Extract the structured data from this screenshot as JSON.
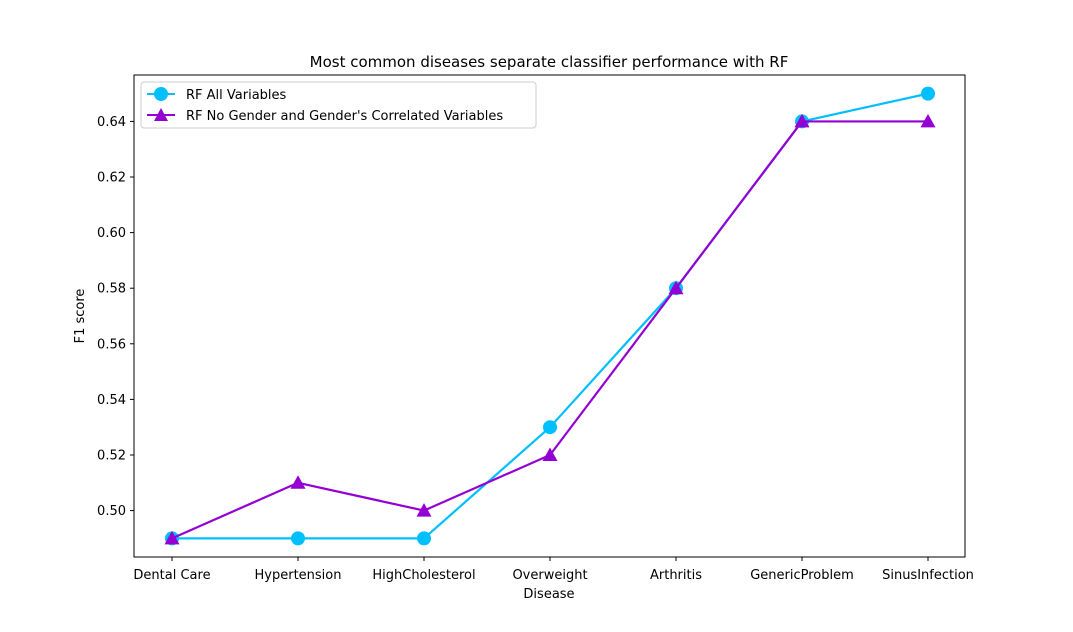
{
  "chart_data": {
    "type": "line",
    "title": "Most common diseases separate classifier performance with RF",
    "xlabel": "Disease",
    "ylabel": "F1 score",
    "categories": [
      "Dental Care",
      "Hypertension",
      "HighCholesterol",
      "Overweight",
      "Arthritis",
      "GenericProblem",
      "SinusInfection"
    ],
    "y_ticks": [
      "0.50",
      "0.52",
      "0.54",
      "0.56",
      "0.58",
      "0.60",
      "0.62",
      "0.64"
    ],
    "ylim": [
      0.4833,
      0.6567
    ],
    "grid": false,
    "legend_position": "top-left",
    "series": [
      {
        "name": "RF All Variables",
        "values": [
          0.49,
          0.49,
          0.49,
          0.53,
          0.58,
          0.64,
          0.65
        ],
        "color": "#00bfff",
        "marker": "circle"
      },
      {
        "name": "RF No Gender and Gender's Correlated Variables",
        "values": [
          0.49,
          0.51,
          0.5,
          0.52,
          0.58,
          0.64,
          0.64
        ],
        "color": "#9400d3",
        "marker": "triangle"
      }
    ]
  }
}
